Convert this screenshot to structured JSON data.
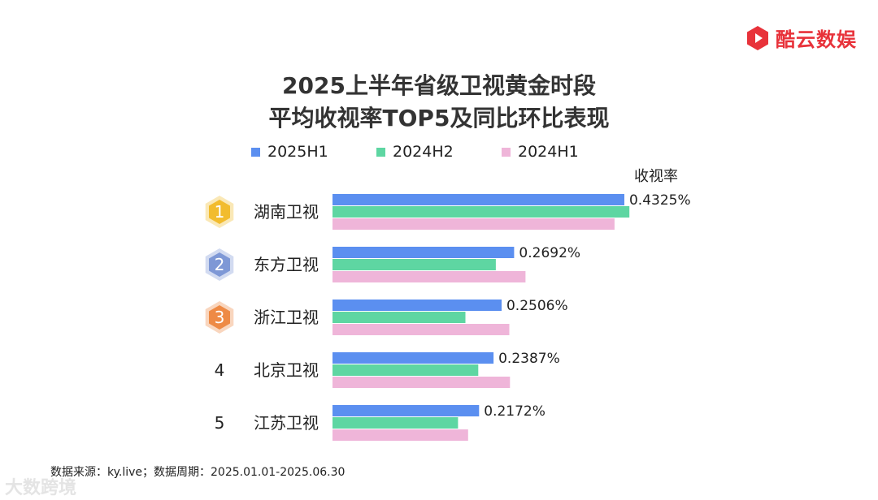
{
  "brand": {
    "name": "酷云数娱",
    "color": "#e8323a"
  },
  "watermark": "大数跨境",
  "chart_data": {
    "type": "bar",
    "orientation": "horizontal",
    "title": "2025上半年省级卫视黄金时段\n平均收视率TOP5及同比环比表现",
    "title_lines": [
      "2025上半年省级卫视黄金时段",
      "平均收视率TOP5及同比环比表现"
    ],
    "value_axis_label": "收视率",
    "legend": "top",
    "xlim": [
      0,
      0.5
    ],
    "grid": false,
    "categories": [
      "湖南卫视",
      "东方卫视",
      "浙江卫视",
      "北京卫视",
      "江苏卫视"
    ],
    "ranks": [
      "1",
      "2",
      "3",
      "4",
      "5"
    ],
    "rank_badge_colors": [
      "#f2bc2e",
      "#7e98d6",
      "#ee8a45",
      null,
      null
    ],
    "series": [
      {
        "name": "2025H1",
        "color": "#5b8ff0",
        "values": [
          0.4325,
          0.2692,
          0.2506,
          0.2387,
          0.2172
        ]
      },
      {
        "name": "2024H2",
        "color": "#5ed6a2",
        "values": [
          0.44,
          0.242,
          0.197,
          0.216,
          0.186
        ]
      },
      {
        "name": "2024H1",
        "color": "#efb5d9",
        "values": [
          0.418,
          0.286,
          0.262,
          0.263,
          0.201
        ]
      }
    ],
    "data_labels": [
      "0.4325%",
      "0.2692%",
      "0.2506%",
      "0.2387%",
      "0.2172%"
    ]
  },
  "footer": "数据来源：ky.live；数据周期：2025.01.01-2025.06.30"
}
